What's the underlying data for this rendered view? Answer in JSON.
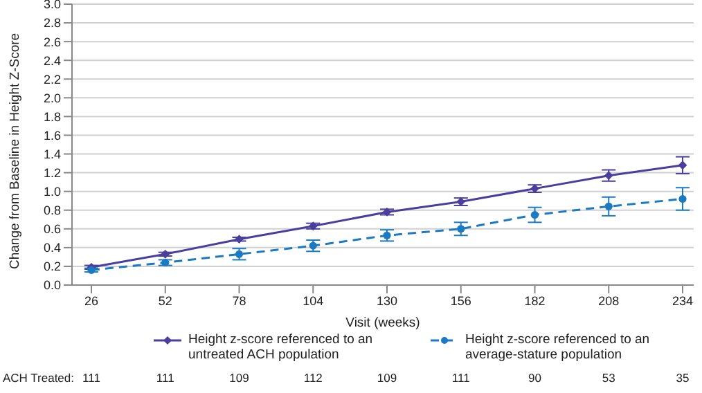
{
  "chart_data": {
    "type": "line",
    "xlabel": "Visit (weeks)",
    "ylabel": "Change from Baseline in Height Z-Score",
    "categories": [
      "26",
      "52",
      "78",
      "104",
      "130",
      "156",
      "182",
      "208",
      "234"
    ],
    "series": [
      {
        "name": "Height z-score referenced to an untreated ACH population",
        "color": "#4b3f9e",
        "marker": "diamond",
        "line_style": "solid",
        "values": [
          0.19,
          0.33,
          0.49,
          0.63,
          0.78,
          0.89,
          1.03,
          1.17,
          1.28
        ],
        "errors": [
          0.02,
          0.02,
          0.02,
          0.03,
          0.03,
          0.04,
          0.04,
          0.06,
          0.09
        ]
      },
      {
        "name": "Height z-score referenced to an average-stature population",
        "color": "#1b7ac2",
        "marker": "circle",
        "line_style": "dashed",
        "values": [
          0.16,
          0.24,
          0.33,
          0.42,
          0.53,
          0.6,
          0.75,
          0.84,
          0.92
        ],
        "errors": [
          0.02,
          0.03,
          0.06,
          0.06,
          0.06,
          0.07,
          0.08,
          0.1,
          0.12
        ]
      }
    ],
    "ylim": [
      0,
      3
    ],
    "yticks": [
      {
        "value": 0,
        "label": "0.0"
      },
      {
        "value": 0.2,
        "label": "0.2"
      },
      {
        "value": 0.4,
        "label": "0.4"
      },
      {
        "value": 0.6,
        "label": "0.6"
      },
      {
        "value": 0.8,
        "label": "0.8"
      },
      {
        "value": 1,
        "label": "1.0"
      },
      {
        "value": 1.2,
        "label": "1.2"
      },
      {
        "value": 1.4,
        "label": "1.4"
      },
      {
        "value": 1.6,
        "label": "1.6"
      },
      {
        "value": 1.8,
        "label": "1.8"
      },
      {
        "value": 2,
        "label": "2.0"
      },
      {
        "value": 2.2,
        "label": "2.2"
      },
      {
        "value": 2.4,
        "label": "2.4"
      },
      {
        "value": 2.6,
        "label": "2.6"
      },
      {
        "value": 2.8,
        "label": "2.8"
      },
      {
        "value": 3,
        "label": "3.0"
      }
    ],
    "grid": "y",
    "legend": "bottom",
    "annotations": [
      "ACH Treated:",
      "111",
      "111",
      "109",
      "112",
      "109",
      "111",
      "90",
      "53",
      "35"
    ]
  }
}
